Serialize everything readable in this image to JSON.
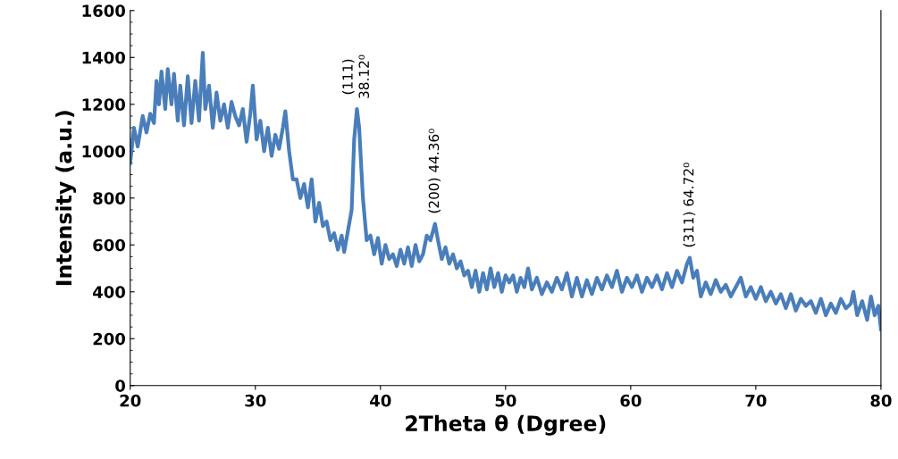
{
  "chart_data": {
    "type": "line",
    "xlabel": "2Theta θ (Dgree)",
    "ylabel": "Intensity (a.u.)",
    "xlim": [
      20,
      80
    ],
    "xticks": [
      20,
      30,
      40,
      50,
      60,
      70,
      80
    ],
    "ylim": [
      0,
      1600
    ],
    "yticks": [
      0,
      200,
      400,
      600,
      800,
      1000,
      1200,
      1400,
      1600
    ],
    "grid": false,
    "legend": false,
    "marker": "none",
    "line_style": "solid",
    "annotations": [
      {
        "text": "(111)\n38.12⁰",
        "x": 38.12,
        "y": 1180
      },
      {
        "text": "(200) 44.36⁰",
        "x": 44.36,
        "y": 690
      },
      {
        "text": "(311) 64.72⁰",
        "x": 64.72,
        "y": 545
      }
    ],
    "series": [
      {
        "color": "#4a7ebb",
        "x": [
          20,
          20.3,
          20.6,
          21,
          21.3,
          21.6,
          21.9,
          22.1,
          22.3,
          22.5,
          22.8,
          23.0,
          23.3,
          23.5,
          23.8,
          24.0,
          24.3,
          24.6,
          24.9,
          25.2,
          25.5,
          25.8,
          26.0,
          26.3,
          26.6,
          26.9,
          27.2,
          27.5,
          27.8,
          28.1,
          28.4,
          28.7,
          29.0,
          29.3,
          29.6,
          29.8,
          30.1,
          30.4,
          30.7,
          31.0,
          31.3,
          31.6,
          31.9,
          32.2,
          32.4,
          32.7,
          33.0,
          33.3,
          33.6,
          33.9,
          34.2,
          34.5,
          34.8,
          35.1,
          35.4,
          35.7,
          36.0,
          36.3,
          36.6,
          36.9,
          37.1,
          37.4,
          37.7,
          37.9,
          38.12,
          38.3,
          38.6,
          38.9,
          39.2,
          39.5,
          39.8,
          40.1,
          40.4,
          40.7,
          41.0,
          41.3,
          41.6,
          41.9,
          42.2,
          42.5,
          42.8,
          43.1,
          43.4,
          43.7,
          44.0,
          44.36,
          44.6,
          44.9,
          45.2,
          45.5,
          45.8,
          46.1,
          46.4,
          46.7,
          47.0,
          47.3,
          47.6,
          47.9,
          48.2,
          48.5,
          48.8,
          49.1,
          49.4,
          49.7,
          50.0,
          50.3,
          50.6,
          50.9,
          51.2,
          51.5,
          51.8,
          52.1,
          52.5,
          52.9,
          53.3,
          53.7,
          54.1,
          54.5,
          54.9,
          55.3,
          55.7,
          56.1,
          56.5,
          56.9,
          57.3,
          57.7,
          58.1,
          58.5,
          58.9,
          59.3,
          59.7,
          60.1,
          60.5,
          60.9,
          61.3,
          61.7,
          62.1,
          62.5,
          62.9,
          63.3,
          63.7,
          64.1,
          64.5,
          64.72,
          65.0,
          65.3,
          65.6,
          66.0,
          66.4,
          66.8,
          67.2,
          67.6,
          68.0,
          68.4,
          68.8,
          69.2,
          69.6,
          70.0,
          70.4,
          70.8,
          71.2,
          71.6,
          72.0,
          72.4,
          72.8,
          73.2,
          73.6,
          74.0,
          74.4,
          74.8,
          75.2,
          75.6,
          76.0,
          76.4,
          76.8,
          77.2,
          77.6,
          77.8,
          78.1,
          78.5,
          78.9,
          79.2,
          79.5,
          79.8,
          80.0
        ],
        "values": [
          950,
          1100,
          1020,
          1150,
          1080,
          1160,
          1120,
          1300,
          1200,
          1340,
          1180,
          1350,
          1200,
          1330,
          1130,
          1280,
          1110,
          1320,
          1120,
          1300,
          1130,
          1420,
          1180,
          1280,
          1100,
          1250,
          1130,
          1200,
          1100,
          1210,
          1150,
          1110,
          1180,
          1040,
          1160,
          1280,
          1050,
          1130,
          1000,
          1100,
          980,
          1070,
          1010,
          1100,
          1170,
          1000,
          880,
          880,
          800,
          860,
          760,
          880,
          700,
          780,
          680,
          700,
          620,
          650,
          580,
          640,
          570,
          660,
          750,
          1050,
          1180,
          1100,
          800,
          620,
          640,
          560,
          630,
          520,
          600,
          540,
          560,
          510,
          580,
          520,
          590,
          510,
          600,
          530,
          560,
          640,
          620,
          690,
          620,
          540,
          590,
          520,
          560,
          500,
          530,
          470,
          490,
          420,
          490,
          400,
          480,
          410,
          500,
          420,
          480,
          400,
          470,
          440,
          470,
          400,
          460,
          420,
          500,
          410,
          460,
          390,
          440,
          400,
          460,
          410,
          480,
          380,
          460,
          380,
          450,
          390,
          460,
          410,
          470,
          420,
          490,
          400,
          460,
          420,
          470,
          400,
          460,
          420,
          470,
          410,
          480,
          420,
          490,
          440,
          520,
          545,
          460,
          490,
          380,
          440,
          390,
          450,
          400,
          430,
          380,
          420,
          460,
          380,
          420,
          370,
          420,
          360,
          400,
          350,
          390,
          330,
          390,
          320,
          370,
          340,
          360,
          310,
          370,
          300,
          350,
          310,
          370,
          330,
          350,
          400,
          300,
          360,
          280,
          380,
          300,
          340,
          240
        ]
      }
    ]
  }
}
